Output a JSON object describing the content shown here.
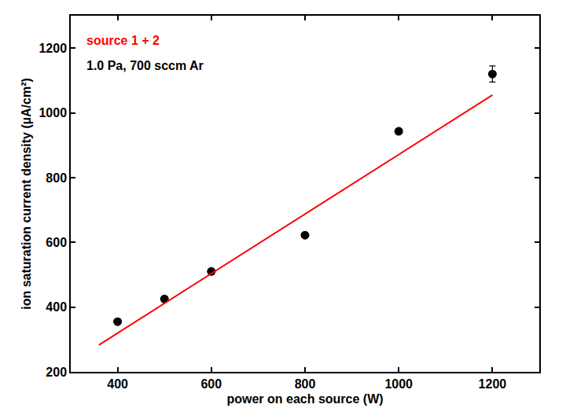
{
  "chart_data": {
    "type": "scatter",
    "x_label": "power on each source (W)",
    "y_label": "ion saturation current density (µA/cm²)",
    "annotations": [
      {
        "text": "source 1 + 2",
        "color": "#ff0000"
      },
      {
        "text": "1.0 Pa, 700 sccm Ar",
        "color": "#000000"
      }
    ],
    "series": [
      {
        "type": "scatter",
        "marker": "circle",
        "color": "#000000",
        "x": [
          400,
          500,
          600,
          800,
          1000,
          1200
        ],
        "values": [
          355,
          425,
          510,
          622,
          943,
          1120
        ],
        "errors": [
          null,
          null,
          null,
          null,
          null,
          25
        ]
      },
      {
        "type": "line",
        "line_style": "solid",
        "color": "#ff0000",
        "x": [
          360,
          1200
        ],
        "values": [
          283,
          1055
        ]
      }
    ],
    "xlim": [
      300,
      1300
    ],
    "xticks": [
      400,
      600,
      800,
      1000,
      1200
    ],
    "ylim": [
      200,
      1300
    ],
    "yticks": [
      200,
      400,
      600,
      800,
      1000,
      1200
    ],
    "grid": false
  }
}
